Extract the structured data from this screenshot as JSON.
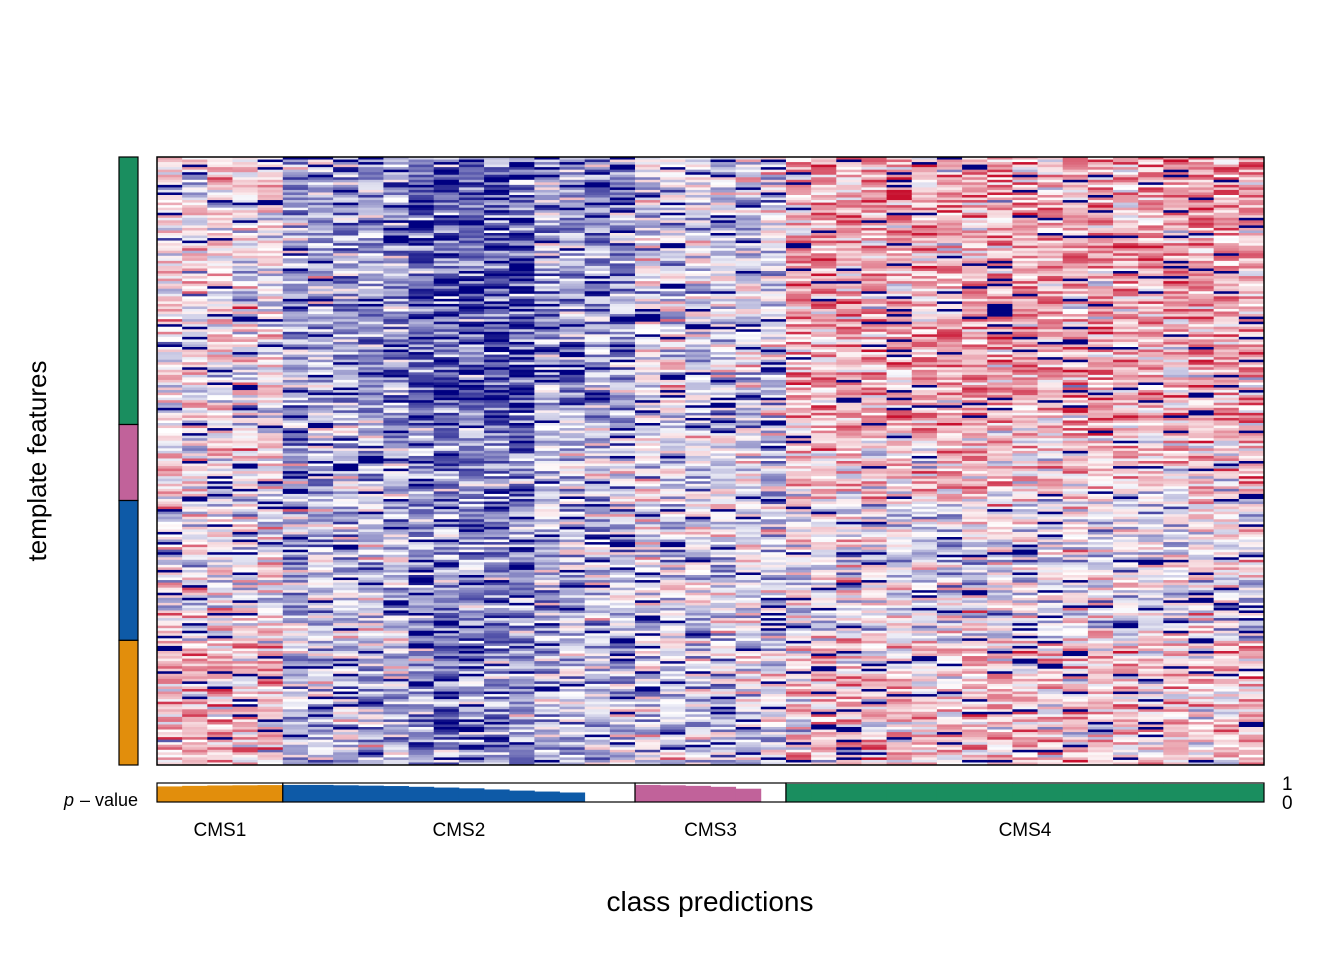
{
  "chart_data": {
    "type": "heatmap",
    "title": "",
    "xlabel": "class predictions",
    "ylabel": "template features",
    "pvalue_label": "p",
    "pvalue_label_suffix": "– value",
    "pvalue_axis_ticks": [
      "1",
      "0"
    ],
    "color_scale": {
      "low": "#000080",
      "mid": "#ffffff",
      "high": "#c8102e"
    },
    "feature_groups": [
      {
        "class": "CMS4",
        "color": "#1a8e5f",
        "share": 0.44
      },
      {
        "class": "CMS3",
        "color": "#c1629a",
        "share": 0.125
      },
      {
        "class": "CMS2",
        "color": "#0e5aa7",
        "share": 0.23
      },
      {
        "class": "CMS1",
        "color": "#e28e0c",
        "share": 0.205
      }
    ],
    "classes": [
      {
        "name": "CMS1",
        "color": "#e28e0c",
        "samples": 5,
        "pvalues": [
          0.82,
          0.85,
          0.87,
          0.88,
          0.89
        ]
      },
      {
        "name": "CMS2",
        "color": "#0e5aa7",
        "samples": 14,
        "pvalues": [
          0.9,
          0.9,
          0.88,
          0.86,
          0.84,
          0.8,
          0.76,
          0.72,
          0.66,
          0.6,
          0.55,
          0.5,
          0.0,
          0.0
        ]
      },
      {
        "name": "CMS3",
        "color": "#c1629a",
        "samples": 6,
        "pvalues": [
          0.9,
          0.88,
          0.85,
          0.8,
          0.7,
          0.0
        ]
      },
      {
        "name": "CMS4",
        "color": "#1a8e5f",
        "samples": 19,
        "pvalues": [
          0.95,
          0.95,
          0.95,
          0.95,
          0.95,
          0.95,
          0.95,
          0.95,
          0.95,
          0.95,
          0.95,
          0.95,
          0.95,
          0.95,
          0.95,
          0.95,
          0.95,
          0.95,
          0.95
        ]
      }
    ]
  }
}
